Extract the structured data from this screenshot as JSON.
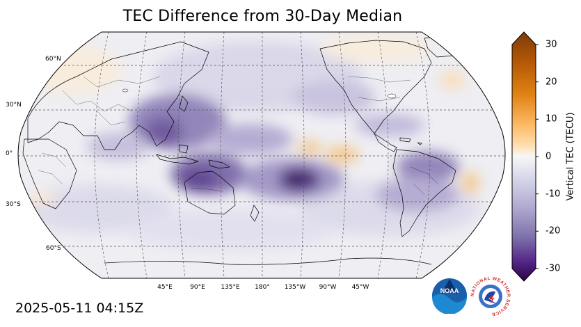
{
  "title": "TEC Difference from 30-Day Median",
  "timestamp": "2025-05-11 04:15Z",
  "colorbar": {
    "label": "Vertical TEC (TECU)",
    "ticks": [
      "30",
      "20",
      "10",
      "0",
      "-10",
      "-20",
      "-30"
    ],
    "range": [
      -30,
      30
    ]
  },
  "map": {
    "projection": "robinson, centered on 180°",
    "lat_labels": [
      "60°N",
      "30°N",
      "0°",
      "30°S",
      "60°S"
    ],
    "lon_labels": [
      "45°E",
      "90°E",
      "135°E",
      "180°",
      "135°W",
      "90°W",
      "45°W"
    ]
  },
  "logos": {
    "noaa": "NOAA",
    "nws": "NATIONAL WEATHER SERVICE"
  },
  "colors": {
    "negative_max": "#3b0f5e",
    "neutral": "#f5f5f5",
    "positive_max": "#8a3d06"
  }
}
